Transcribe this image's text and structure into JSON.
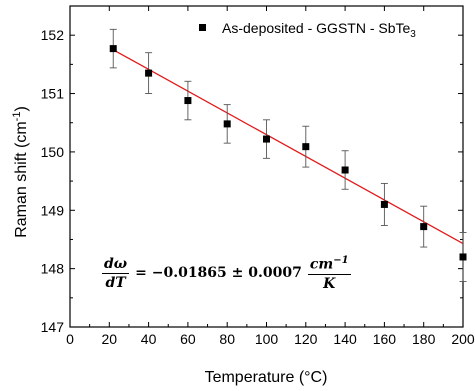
{
  "chart_data": {
    "type": "scatter",
    "title": "",
    "xlabel": "Temperature (°C)",
    "ylabel_main": "Raman shift (cm",
    "ylabel_sup": "-1",
    "ylabel_end": ")",
    "xlim": [
      0,
      200
    ],
    "ylim": [
      147,
      152.5
    ],
    "xticks": [
      0,
      20,
      40,
      60,
      80,
      100,
      120,
      140,
      160,
      180,
      200
    ],
    "yticks": [
      147,
      148,
      149,
      150,
      151,
      152
    ],
    "grid": false,
    "legend_position": "top-right",
    "series": [
      {
        "name": "As-deposited - GGSTN - SbTe",
        "name_sub": "3",
        "marker": "square",
        "color": "#000000",
        "x": [
          22,
          40,
          60,
          80,
          100,
          120,
          140,
          160,
          180,
          200
        ],
        "y": [
          151.77,
          151.35,
          150.88,
          150.48,
          150.22,
          150.09,
          149.69,
          149.1,
          148.72,
          148.2
        ],
        "err": [
          0.33,
          0.35,
          0.33,
          0.33,
          0.33,
          0.35,
          0.33,
          0.36,
          0.35,
          0.42
        ]
      }
    ],
    "fit_line": {
      "color": "#e31a1c",
      "x": [
        22,
        200
      ],
      "y": [
        151.75,
        148.43
      ]
    },
    "annotation": {
      "lhs_num": "dω",
      "lhs_den": "dT",
      "middle": "= −0.01865 ± 0.0007",
      "unit_num": "cm",
      "unit_num_sup": "−1",
      "unit_den": "K"
    }
  }
}
